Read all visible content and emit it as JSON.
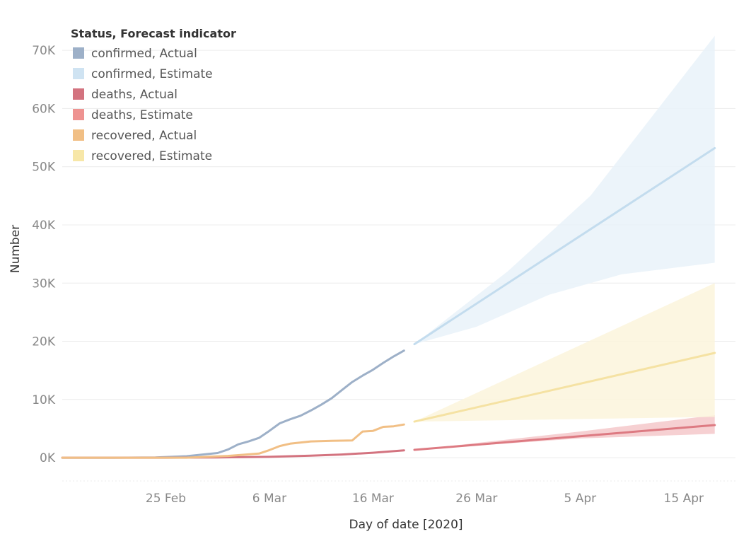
{
  "chart_data": {
    "type": "line",
    "xlabel": "Day of date [2020]",
    "ylabel": "Number",
    "ylim": [
      -4000,
      75000
    ],
    "xlim": [
      "2020-02-15",
      "2020-04-20"
    ],
    "x_ticks": [
      {
        "date": "2020-02-25",
        "label": "25 Feb"
      },
      {
        "date": "2020-03-06",
        "label": "6 Mar"
      },
      {
        "date": "2020-03-16",
        "label": "16 Mar"
      },
      {
        "date": "2020-03-26",
        "label": "26 Mar"
      },
      {
        "date": "2020-04-05",
        "label": "5 Apr"
      },
      {
        "date": "2020-04-15",
        "label": "15 Apr"
      }
    ],
    "y_ticks": [
      {
        "value": 0,
        "label": "0K"
      },
      {
        "value": 10000,
        "label": "10K"
      },
      {
        "value": 20000,
        "label": "20K"
      },
      {
        "value": 30000,
        "label": "30K"
      },
      {
        "value": 40000,
        "label": "40K"
      },
      {
        "value": 50000,
        "label": "50K"
      },
      {
        "value": 60000,
        "label": "60K"
      },
      {
        "value": 70000,
        "label": "70K"
      }
    ],
    "grid": true,
    "legend": {
      "title": "Status, Forecast indicator",
      "position": "top-left",
      "entries": [
        {
          "label": "confirmed, Actual",
          "color": "#9db0c8"
        },
        {
          "label": "confirmed, Estimate",
          "color": "#cfe3f2"
        },
        {
          "label": "deaths, Actual",
          "color": "#d3737f"
        },
        {
          "label": "deaths, Estimate",
          "color": "#ee9391"
        },
        {
          "label": "recovered, Actual",
          "color": "#f1bf85"
        },
        {
          "label": "recovered, Estimate",
          "color": "#f7e7a8"
        }
      ]
    },
    "series": [
      {
        "name": "confirmed, Actual",
        "color": "#9db0c8",
        "points": [
          [
            "2020-02-15",
            0
          ],
          [
            "2020-02-20",
            0
          ],
          [
            "2020-02-24",
            50
          ],
          [
            "2020-02-27",
            250
          ],
          [
            "2020-03-01",
            800
          ],
          [
            "2020-03-02",
            1400
          ],
          [
            "2020-03-03",
            2300
          ],
          [
            "2020-03-04",
            2800
          ],
          [
            "2020-03-05",
            3400
          ],
          [
            "2020-03-06",
            4600
          ],
          [
            "2020-03-07",
            5900
          ],
          [
            "2020-03-08",
            6600
          ],
          [
            "2020-03-09",
            7200
          ],
          [
            "2020-03-10",
            8100
          ],
          [
            "2020-03-11",
            9100
          ],
          [
            "2020-03-12",
            10200
          ],
          [
            "2020-03-13",
            11600
          ],
          [
            "2020-03-14",
            13000
          ],
          [
            "2020-03-15",
            14100
          ],
          [
            "2020-03-16",
            15100
          ],
          [
            "2020-03-17",
            16300
          ],
          [
            "2020-03-18",
            17400
          ],
          [
            "2020-03-19",
            18400
          ]
        ]
      },
      {
        "name": "confirmed, Estimate",
        "color": "#c3dcee",
        "band_color": "#e9f2f9",
        "points": [
          [
            "2020-03-20",
            19500
          ],
          [
            "2020-04-18",
            53200
          ]
        ],
        "lower": [
          [
            "2020-03-20",
            19500
          ],
          [
            "2020-03-26",
            22500
          ],
          [
            "2020-04-02",
            28000
          ],
          [
            "2020-04-09",
            31500
          ],
          [
            "2020-04-18",
            33500
          ]
        ],
        "upper": [
          [
            "2020-03-20",
            19500
          ],
          [
            "2020-03-29",
            32000
          ],
          [
            "2020-04-06",
            45000
          ],
          [
            "2020-04-18",
            72500
          ]
        ]
      },
      {
        "name": "deaths, Actual",
        "color": "#d3737f",
        "points": [
          [
            "2020-02-15",
            0
          ],
          [
            "2020-02-25",
            0
          ],
          [
            "2020-03-01",
            30
          ],
          [
            "2020-03-06",
            150
          ],
          [
            "2020-03-10",
            350
          ],
          [
            "2020-03-13",
            550
          ],
          [
            "2020-03-16",
            850
          ],
          [
            "2020-03-19",
            1250
          ]
        ]
      },
      {
        "name": "deaths, Estimate",
        "color": "#dd7a82",
        "band_color": "#f4c8ca",
        "points": [
          [
            "2020-03-20",
            1350
          ],
          [
            "2020-04-18",
            5600
          ]
        ],
        "lower": [
          [
            "2020-03-20",
            1350
          ],
          [
            "2020-04-05",
            3300
          ],
          [
            "2020-04-18",
            4100
          ]
        ],
        "upper": [
          [
            "2020-03-20",
            1350
          ],
          [
            "2020-04-05",
            4500
          ],
          [
            "2020-04-18",
            7300
          ]
        ]
      },
      {
        "name": "recovered, Actual",
        "color": "#f1bf85",
        "points": [
          [
            "2020-02-15",
            0
          ],
          [
            "2020-02-27",
            0
          ],
          [
            "2020-03-02",
            300
          ],
          [
            "2020-03-05",
            700
          ],
          [
            "2020-03-06",
            1300
          ],
          [
            "2020-03-07",
            2000
          ],
          [
            "2020-03-08",
            2400
          ],
          [
            "2020-03-10",
            2800
          ],
          [
            "2020-03-12",
            2900
          ],
          [
            "2020-03-14",
            2950
          ],
          [
            "2020-03-15",
            4500
          ],
          [
            "2020-03-16",
            4600
          ],
          [
            "2020-03-17",
            5300
          ],
          [
            "2020-03-18",
            5400
          ],
          [
            "2020-03-19",
            5700
          ]
        ]
      },
      {
        "name": "recovered, Estimate",
        "color": "#f5e2a3",
        "band_color": "#fbf4dc",
        "points": [
          [
            "2020-03-20",
            6200
          ],
          [
            "2020-04-18",
            18000
          ]
        ],
        "lower": [
          [
            "2020-03-20",
            6200
          ],
          [
            "2020-04-18",
            7000
          ]
        ],
        "upper": [
          [
            "2020-03-20",
            6200
          ],
          [
            "2020-04-18",
            30000
          ]
        ]
      }
    ]
  }
}
